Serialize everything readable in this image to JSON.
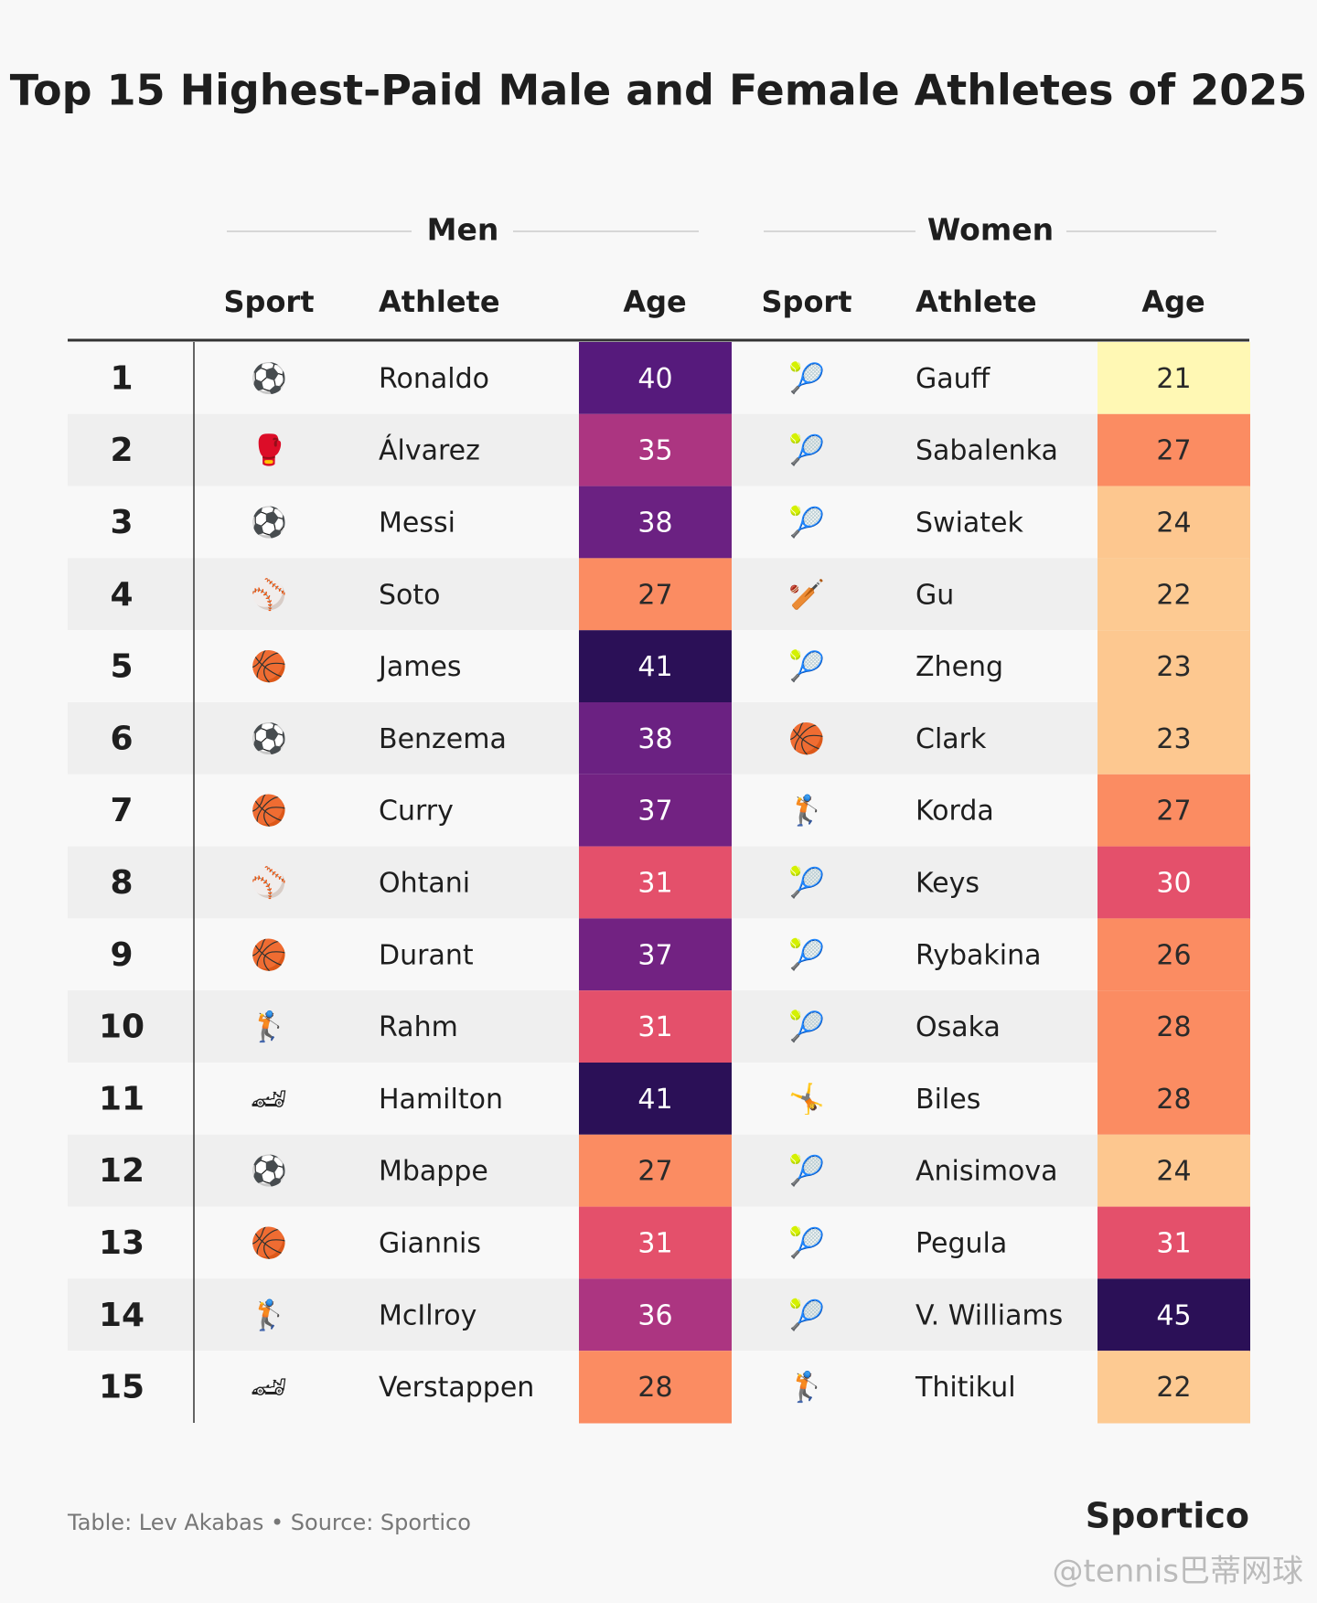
{
  "title": "Top 15 Highest-Paid Male and Female Athletes of 2025",
  "groups": [
    "Men",
    "Women"
  ],
  "columns": [
    "Sport",
    "Athlete",
    "Age",
    "Sport",
    "Athlete",
    "Age"
  ],
  "rows": [
    {
      "rank": "1",
      "men": {
        "sport": "⚽",
        "athlete": "Ronaldo",
        "age": "40",
        "color": "#561a7c"
      },
      "women": {
        "sport": "🎾",
        "athlete": "Gauff",
        "age": "21",
        "color": "#fff8b4"
      }
    },
    {
      "rank": "2",
      "men": {
        "sport": "🥊",
        "athlete": "Álvarez",
        "age": "35",
        "color": "#ac3581"
      },
      "women": {
        "sport": "🎾",
        "athlete": "Sabalenka",
        "age": "27",
        "color": "#fb8c62"
      }
    },
    {
      "rank": "3",
      "men": {
        "sport": "⚽",
        "athlete": "Messi",
        "age": "38",
        "color": "#6b2182"
      },
      "women": {
        "sport": "🎾",
        "athlete": "Swiatek",
        "age": "24",
        "color": "#fdc78f"
      }
    },
    {
      "rank": "4",
      "men": {
        "sport": "⚾",
        "athlete": "Soto",
        "age": "27",
        "color": "#fb8c62"
      },
      "women": {
        "sport": "🏏",
        "athlete": "Gu",
        "age": "22",
        "color": "#fdca92"
      }
    },
    {
      "rank": "5",
      "men": {
        "sport": "🏀",
        "athlete": "James",
        "age": "41",
        "color": "#2b1057"
      },
      "women": {
        "sport": "🎾",
        "athlete": "Zheng",
        "age": "23",
        "color": "#fdc890"
      }
    },
    {
      "rank": "6",
      "men": {
        "sport": "⚽",
        "athlete": "Benzema",
        "age": "38",
        "color": "#6b2182"
      },
      "women": {
        "sport": "🏀",
        "athlete": "Clark",
        "age": "23",
        "color": "#fdc890"
      }
    },
    {
      "rank": "7",
      "men": {
        "sport": "🏀",
        "athlete": "Curry",
        "age": "37",
        "color": "#722282"
      },
      "women": {
        "sport": "🏌",
        "athlete": "Korda",
        "age": "27",
        "color": "#fb8c62"
      }
    },
    {
      "rank": "8",
      "men": {
        "sport": "⚾",
        "athlete": "Ohtani",
        "age": "31",
        "color": "#e4506b"
      },
      "women": {
        "sport": "🎾",
        "athlete": "Keys",
        "age": "30",
        "color": "#e4506b"
      }
    },
    {
      "rank": "9",
      "men": {
        "sport": "🏀",
        "athlete": "Durant",
        "age": "37",
        "color": "#722282"
      },
      "women": {
        "sport": "🎾",
        "athlete": "Rybakina",
        "age": "26",
        "color": "#fb8c62"
      }
    },
    {
      "rank": "10",
      "men": {
        "sport": "🏌",
        "athlete": "Rahm",
        "age": "31",
        "color": "#e4506b"
      },
      "women": {
        "sport": "🎾",
        "athlete": "Osaka",
        "age": "28",
        "color": "#fb8c62"
      }
    },
    {
      "rank": "11",
      "men": {
        "sport": "🏎",
        "athlete": "Hamilton",
        "age": "41",
        "color": "#2b1057"
      },
      "women": {
        "sport": "🤸",
        "athlete": "Biles",
        "age": "28",
        "color": "#fb8c62"
      }
    },
    {
      "rank": "12",
      "men": {
        "sport": "⚽",
        "athlete": "Mbappe",
        "age": "27",
        "color": "#fb8c62"
      },
      "women": {
        "sport": "🎾",
        "athlete": "Anisimova",
        "age": "24",
        "color": "#fdc78f"
      }
    },
    {
      "rank": "13",
      "men": {
        "sport": "🏀",
        "athlete": "Giannis",
        "age": "31",
        "color": "#e4506b"
      },
      "women": {
        "sport": "🎾",
        "athlete": "Pegula",
        "age": "31",
        "color": "#e4506b"
      }
    },
    {
      "rank": "14",
      "men": {
        "sport": "🏌",
        "athlete": "McIlroy",
        "age": "36",
        "color": "#ac3581"
      },
      "women": {
        "sport": "🎾",
        "athlete": "V. Williams",
        "age": "45",
        "color": "#2b1057"
      }
    },
    {
      "rank": "15",
      "men": {
        "sport": "🏎",
        "athlete": "Verstappen",
        "age": "28",
        "color": "#fb8c62"
      },
      "women": {
        "sport": "🏌",
        "athlete": "Thitikul",
        "age": "22",
        "color": "#fdca92"
      }
    }
  ],
  "footer": {
    "credit": "Table: Lev Akabas • Source: Sportico",
    "logo": "Sportico",
    "watermark": "@tennis巴蒂网球"
  }
}
